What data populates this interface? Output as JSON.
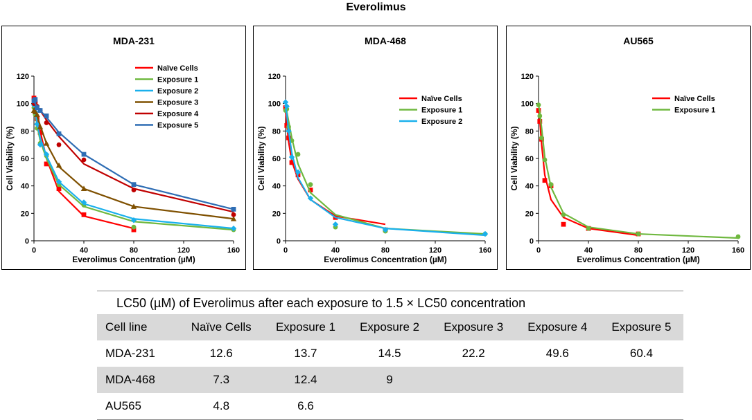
{
  "figure_title": "Everolimus",
  "colors": {
    "naive": "#ff0000",
    "exp1": "#6fb83f",
    "exp2": "#1ab0ec",
    "exp3": "#7f5000",
    "exp4": "#c00000",
    "exp5": "#2e6db4"
  },
  "chart_data": [
    {
      "type": "line",
      "title": "MDA-231",
      "xlabel": "Everolimus Concentration (µM)",
      "ylabel": "Cell Viability (%)",
      "xlim": [
        0,
        160
      ],
      "ylim": [
        0,
        120
      ],
      "xticks": [
        0,
        40,
        80,
        120,
        160
      ],
      "yticks": [
        0,
        20,
        40,
        60,
        80,
        100,
        120
      ],
      "legend_position": "top-right",
      "series": [
        {
          "name": "Naïve Cells",
          "color_key": "naive",
          "marker": "square",
          "points": [
            [
              0,
              104
            ],
            [
              1,
              101
            ],
            [
              2.5,
              89
            ],
            [
              5,
              79
            ],
            [
              10,
              56
            ],
            [
              20,
              38
            ],
            [
              40,
              19
            ],
            [
              80,
              8
            ]
          ],
          "fit": [
            [
              0,
              103
            ],
            [
              1,
              99
            ],
            [
              2.5,
              91
            ],
            [
              5,
              80
            ],
            [
              10,
              60
            ],
            [
              20,
              36
            ],
            [
              40,
              18
            ],
            [
              80,
              9
            ]
          ]
        },
        {
          "name": "Exposure 1",
          "color_key": "exp1",
          "marker": "circle",
          "points": [
            [
              0,
              97
            ],
            [
              1,
              92
            ],
            [
              2.5,
              82
            ],
            [
              5,
              71
            ],
            [
              10,
              62
            ],
            [
              20,
              41
            ],
            [
              40,
              26
            ],
            [
              80,
              10
            ],
            [
              160,
              8
            ]
          ],
          "fit": [
            [
              0,
              98
            ],
            [
              1,
              93
            ],
            [
              2.5,
              84
            ],
            [
              5,
              73
            ],
            [
              10,
              60
            ],
            [
              20,
              41
            ],
            [
              40,
              25
            ],
            [
              80,
              14
            ],
            [
              160,
              8
            ]
          ]
        },
        {
          "name": "Exposure 2",
          "color_key": "exp2",
          "marker": "diamond",
          "points": [
            [
              0,
              99
            ],
            [
              1,
              94
            ],
            [
              2.5,
              85
            ],
            [
              5,
              70
            ],
            [
              10,
              63
            ],
            [
              20,
              43
            ],
            [
              40,
              28
            ],
            [
              80,
              15
            ],
            [
              160,
              9
            ]
          ],
          "fit": [
            [
              0,
              99
            ],
            [
              1,
              95
            ],
            [
              2.5,
              86
            ],
            [
              5,
              75
            ],
            [
              10,
              62
            ],
            [
              20,
              43
            ],
            [
              40,
              27
            ],
            [
              80,
              16
            ],
            [
              160,
              9
            ]
          ]
        },
        {
          "name": "Exposure 3",
          "color_key": "exp3",
          "marker": "triangle",
          "points": [
            [
              0,
              95
            ],
            [
              1,
              94
            ],
            [
              2.5,
              92
            ],
            [
              5,
              83
            ],
            [
              10,
              71
            ],
            [
              20,
              55
            ],
            [
              40,
              38
            ],
            [
              80,
              25
            ],
            [
              160,
              16
            ]
          ],
          "fit": [
            [
              0,
              97
            ],
            [
              1,
              95
            ],
            [
              2.5,
              91
            ],
            [
              5,
              84
            ],
            [
              10,
              71
            ],
            [
              20,
              54
            ],
            [
              40,
              38
            ],
            [
              80,
              25
            ],
            [
              160,
              16
            ]
          ]
        },
        {
          "name": "Exposure 4",
          "color_key": "exp4",
          "marker": "circle",
          "points": [
            [
              0,
              100
            ],
            [
              1,
              101
            ],
            [
              2.5,
              98
            ],
            [
              5,
              95
            ],
            [
              10,
              86
            ],
            [
              20,
              70
            ],
            [
              40,
              59
            ],
            [
              80,
              37
            ],
            [
              160,
              19
            ]
          ],
          "fit": [
            [
              0,
              102
            ],
            [
              1,
              100
            ],
            [
              2.5,
              98
            ],
            [
              5,
              95
            ],
            [
              10,
              88
            ],
            [
              20,
              76
            ],
            [
              40,
              56
            ],
            [
              80,
              38
            ],
            [
              160,
              21
            ]
          ]
        },
        {
          "name": "Exposure 5",
          "color_key": "exp5",
          "marker": "square",
          "points": [
            [
              0,
              102
            ],
            [
              1,
              103
            ],
            [
              2.5,
              97
            ],
            [
              5,
              95
            ],
            [
              10,
              91
            ],
            [
              20,
              78
            ],
            [
              40,
              63
            ],
            [
              80,
              41
            ],
            [
              160,
              23
            ]
          ],
          "fit": [
            [
              0,
              102
            ],
            [
              1,
              100
            ],
            [
              2.5,
              98
            ],
            [
              5,
              95
            ],
            [
              10,
              90
            ],
            [
              20,
              79
            ],
            [
              40,
              63
            ],
            [
              80,
              41
            ],
            [
              160,
              23
            ]
          ]
        }
      ]
    },
    {
      "type": "line",
      "title": "MDA-468",
      "xlabel": "Everolimus Concentration (µM)",
      "ylabel": "Cell Viability (%)",
      "xlim": [
        0,
        160
      ],
      "ylim": [
        0,
        120
      ],
      "xticks": [
        0,
        40,
        80,
        120,
        160
      ],
      "yticks": [
        0,
        20,
        40,
        60,
        80,
        100,
        120
      ],
      "legend_position": "center-right",
      "series": [
        {
          "name": "Naïve Cells",
          "color_key": "naive",
          "marker": "square",
          "points": [
            [
              0,
              97
            ],
            [
              1,
              84
            ],
            [
              2.5,
              75
            ],
            [
              5,
              57
            ],
            [
              10,
              48
            ],
            [
              20,
              37
            ],
            [
              40,
              17
            ],
            [
              80,
              8
            ]
          ],
          "fit": [
            [
              0,
              95
            ],
            [
              1,
              85
            ],
            [
              2.5,
              72
            ],
            [
              5,
              58
            ],
            [
              10,
              45
            ],
            [
              20,
              30
            ],
            [
              40,
              18
            ],
            [
              80,
              12
            ]
          ]
        },
        {
          "name": "Exposure 1",
          "color_key": "exp1",
          "marker": "circle",
          "points": [
            [
              0,
              95
            ],
            [
              1,
              96
            ],
            [
              2.5,
              83
            ],
            [
              5,
              73
            ],
            [
              10,
              63
            ],
            [
              20,
              41
            ],
            [
              40,
              10
            ],
            [
              80,
              7
            ],
            [
              160,
              5
            ]
          ],
          "fit": [
            [
              0,
              97
            ],
            [
              1,
              94
            ],
            [
              2.5,
              87
            ],
            [
              5,
              75
            ],
            [
              10,
              56
            ],
            [
              20,
              35
            ],
            [
              40,
              19
            ],
            [
              80,
              9
            ],
            [
              160,
              5
            ]
          ]
        },
        {
          "name": "Exposure 2",
          "color_key": "exp2",
          "marker": "diamond",
          "points": [
            [
              0,
              101
            ],
            [
              1,
              98
            ],
            [
              2.5,
              80
            ],
            [
              5,
              61
            ],
            [
              10,
              50
            ],
            [
              20,
              31
            ],
            [
              40,
              12
            ],
            [
              80,
              8
            ],
            [
              160,
              5
            ]
          ],
          "fit": [
            [
              0,
              99
            ],
            [
              1,
              92
            ],
            [
              2.5,
              80
            ],
            [
              5,
              64
            ],
            [
              10,
              46
            ],
            [
              20,
              30
            ],
            [
              40,
              17
            ],
            [
              80,
              9
            ],
            [
              160,
              4
            ]
          ]
        }
      ]
    },
    {
      "type": "line",
      "title": "AU565",
      "xlabel": "Everolimus Concentration (µM)",
      "ylabel": "Cell Viability (%)",
      "xlim": [
        0,
        160
      ],
      "ylim": [
        0,
        120
      ],
      "xticks": [
        0,
        40,
        80,
        120,
        160
      ],
      "yticks": [
        0,
        20,
        40,
        60,
        80,
        100,
        120
      ],
      "legend_position": "center-right",
      "series": [
        {
          "name": "Naïve Cells",
          "color_key": "naive",
          "marker": "square",
          "points": [
            [
              0,
              95
            ],
            [
              1,
              87
            ],
            [
              2.5,
              74
            ],
            [
              5,
              44
            ],
            [
              10,
              40
            ],
            [
              20,
              12
            ],
            [
              40,
              9
            ],
            [
              80,
              5
            ]
          ],
          "fit": [
            [
              0,
              96
            ],
            [
              1,
              88
            ],
            [
              2.5,
              70
            ],
            [
              5,
              48
            ],
            [
              10,
              30
            ],
            [
              20,
              17
            ],
            [
              40,
              9
            ],
            [
              80,
              4
            ]
          ]
        },
        {
          "name": "Exposure 1",
          "color_key": "exp1",
          "marker": "circle",
          "points": [
            [
              0,
              99
            ],
            [
              1,
              91
            ],
            [
              2.5,
              75
            ],
            [
              5,
              59
            ],
            [
              10,
              41
            ],
            [
              20,
              19
            ],
            [
              40,
              9
            ],
            [
              80,
              5
            ],
            [
              160,
              3
            ]
          ],
          "fit": [
            [
              0,
              99
            ],
            [
              1,
              94
            ],
            [
              2.5,
              82
            ],
            [
              5,
              61
            ],
            [
              10,
              39
            ],
            [
              20,
              20
            ],
            [
              40,
              10
            ],
            [
              80,
              5
            ],
            [
              160,
              2
            ]
          ]
        }
      ]
    }
  ],
  "lc50_table": {
    "title": "LC50 (µM) of Everolimus after each exposure to 1.5 × LC50 concentration",
    "columns": [
      "Cell line",
      "Naïve Cells",
      "Exposure 1",
      "Exposure 2",
      "Exposure 3",
      "Exposure 4",
      "Exposure 5"
    ],
    "rows": [
      [
        "MDA-231",
        "12.6",
        "13.7",
        "14.5",
        "22.2",
        "49.6",
        "60.4"
      ],
      [
        "MDA-468",
        "7.3",
        "12.4",
        "9",
        "",
        "",
        ""
      ],
      [
        "AU565",
        "4.8",
        "6.6",
        "",
        "",
        "",
        ""
      ]
    ]
  }
}
